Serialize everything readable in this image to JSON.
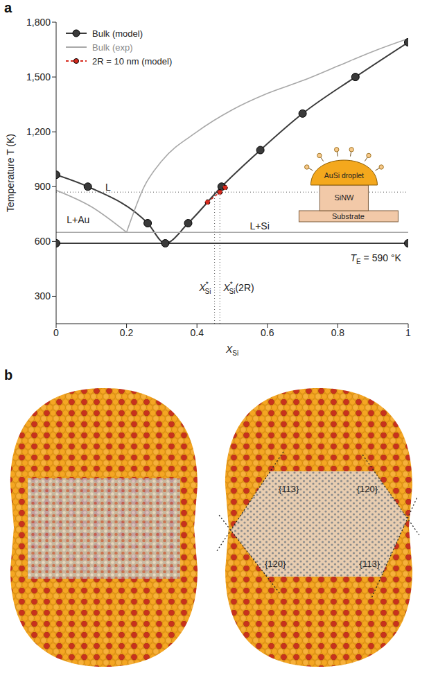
{
  "panel_label": "a",
  "chart_data": {
    "type": "line",
    "x_label": {
      "main": "X",
      "sub": "Si"
    },
    "y_label": "Temperature T (K)",
    "xlim": [
      0,
      1
    ],
    "xticks": [
      0,
      0.2,
      0.4,
      0.6,
      0.8,
      1
    ],
    "ylim": [
      150,
      1800
    ],
    "yticks": [
      300,
      600,
      900,
      {
        "value": 1200,
        "label": "1,200"
      },
      {
        "value": 1500,
        "label": "1,500"
      },
      {
        "value": 1800,
        "label": "1,800"
      }
    ],
    "legend": "upper left",
    "series": [
      {
        "name": "Bulk (model)",
        "color": "#3a3a3a",
        "marker": "circle",
        "line_style": "solid",
        "segments": [
          {
            "x": [
              0,
              0.09,
              0.26,
              0.31,
              0.375,
              0.47,
              0.58,
              0.7,
              0.85,
              1
            ],
            "values": [
              965,
              900,
              700,
              590,
              700,
              900,
              1100,
              1300,
              1500,
              1690
            ]
          },
          {
            "x": [
              0,
              1
            ],
            "values": [
              590,
              590
            ]
          }
        ]
      },
      {
        "name": "Bulk (exp)",
        "color": "#a8a8a8",
        "marker": "none",
        "line_style": "solid",
        "segments": [
          {
            "x": [
              0,
              0.1,
              0.2
            ],
            "values": [
              880,
              790,
              650
            ]
          },
          {
            "x": [
              0.2,
              0.25,
              0.3,
              0.4,
              0.5,
              0.6,
              0.7,
              0.8,
              0.9,
              1
            ],
            "values": [
              650,
              900,
              1040,
              1200,
              1320,
              1410,
              1480,
              1560,
              1640,
              1710
            ]
          },
          {
            "x": [
              0,
              1
            ],
            "values": [
              650,
              650
            ]
          }
        ]
      },
      {
        "name": "2R = 10 nm (model)",
        "color": "#d62a1e",
        "marker": "circle",
        "line_style": "dashed",
        "segments": [
          {
            "x": [
              0.43,
              0.465,
              0.48
            ],
            "values": [
              815,
              870,
              895
            ]
          }
        ]
      }
    ],
    "guides": {
      "T": 870,
      "x_star": 0.45,
      "x_star_2R": 0.465
    },
    "annotations": {
      "liquid": "L",
      "liquid_au": "L+Au",
      "liquid_si": "L+Si",
      "eutectic": {
        "main": "T",
        "sub": "E",
        "rest": " = 590 °K"
      },
      "x_star": {
        "main": "X",
        "sup": "*",
        "sub": "Si"
      },
      "x_star_2R": {
        "main": "X",
        "sup": "*",
        "sub": "Si",
        "rest": "(2R)"
      }
    },
    "inset": {
      "droplet": "AuSi droplet",
      "wire": "SiNW",
      "substrate": "Substrate"
    }
  },
  "panel_b": {
    "label": "b",
    "facets": [
      "{113}",
      "{120}",
      "{120}",
      "{113}"
    ]
  }
}
